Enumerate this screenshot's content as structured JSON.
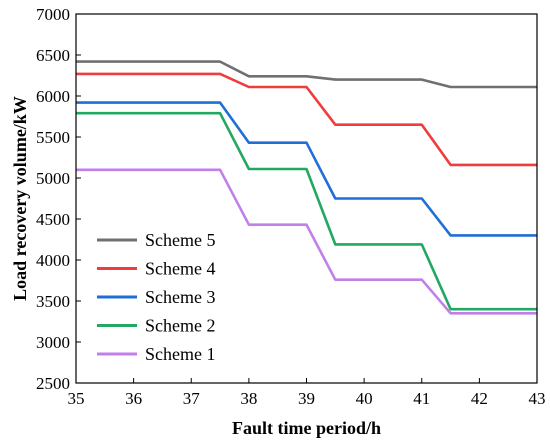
{
  "chart_data": {
    "type": "line",
    "title": "",
    "xlabel": "Fault time period/h",
    "ylabel": "Load recovery volume/kW",
    "xlim": [
      35,
      43
    ],
    "ylim": [
      2500,
      7000
    ],
    "xticks": [
      35,
      36,
      37,
      38,
      39,
      40,
      41,
      42,
      43
    ],
    "yticks": [
      2500,
      3000,
      3500,
      4000,
      4500,
      5000,
      5500,
      6000,
      6500,
      7000
    ],
    "grid": false,
    "legend_position": "bottom-left",
    "x": [
      35,
      37.5,
      38,
      39,
      39.5,
      41,
      41.5,
      43
    ],
    "series": [
      {
        "name": "Scheme 5",
        "color": "#707070",
        "values": [
          6420,
          6420,
          6240,
          6240,
          6200,
          6200,
          6110,
          6110
        ]
      },
      {
        "name": "Scheme 4",
        "color": "#f03c3c",
        "values": [
          6270,
          6270,
          6110,
          6110,
          5650,
          5650,
          5160,
          5160
        ]
      },
      {
        "name": "Scheme 3",
        "color": "#1f6fd6",
        "values": [
          5920,
          5920,
          5430,
          5430,
          4750,
          4750,
          4300,
          4300
        ]
      },
      {
        "name": "Scheme 2",
        "color": "#22a862",
        "values": [
          5790,
          5790,
          5110,
          5110,
          4190,
          4190,
          3400,
          3400
        ]
      },
      {
        "name": "Scheme 1",
        "color": "#c080e8",
        "values": [
          5100,
          5100,
          4430,
          4430,
          3760,
          3760,
          3350,
          3350
        ]
      }
    ]
  }
}
